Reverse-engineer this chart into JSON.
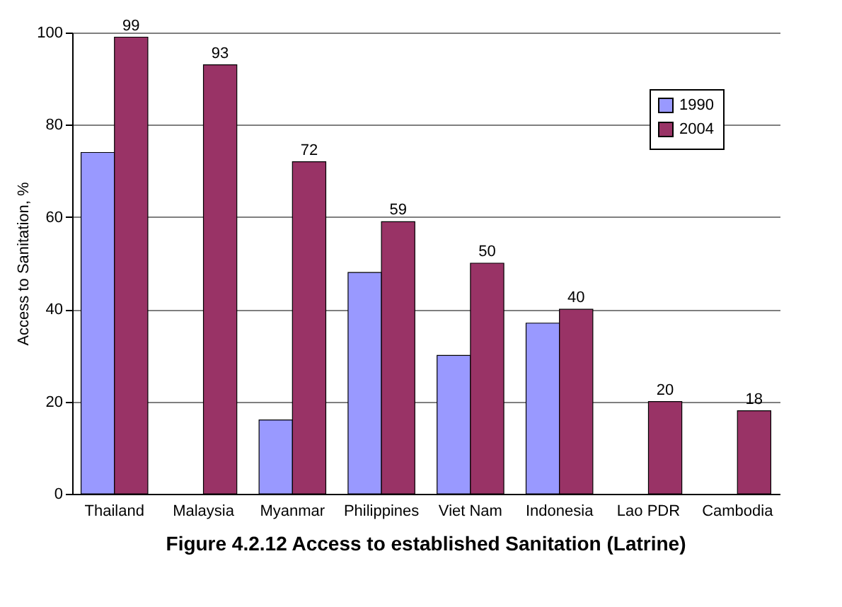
{
  "chart_data": {
    "type": "bar",
    "title": "Figure 4.2.12 Access to established Sanitation (Latrine)",
    "ylabel": "Access to Sanitation, %",
    "categories": [
      "Thailand",
      "Malaysia",
      "Myanmar",
      "Philippines",
      "Viet Nam",
      "Indonesia",
      "Lao PDR",
      "Cambodia"
    ],
    "series": [
      {
        "name": "1990",
        "color": "#9999ff",
        "values": [
          74,
          null,
          16,
          48,
          30,
          37,
          null,
          null
        ]
      },
      {
        "name": "2004",
        "color": "#993366",
        "values": [
          99,
          93,
          72,
          59,
          50,
          40,
          20,
          18
        ],
        "value_labels": [
          "99",
          "93",
          "72",
          "59",
          "50",
          "40",
          "20",
          "18"
        ]
      }
    ],
    "ylim": [
      0,
      100
    ],
    "yticks": [
      0,
      20,
      40,
      60,
      80,
      100
    ],
    "grid": "y",
    "legend": "top right"
  }
}
